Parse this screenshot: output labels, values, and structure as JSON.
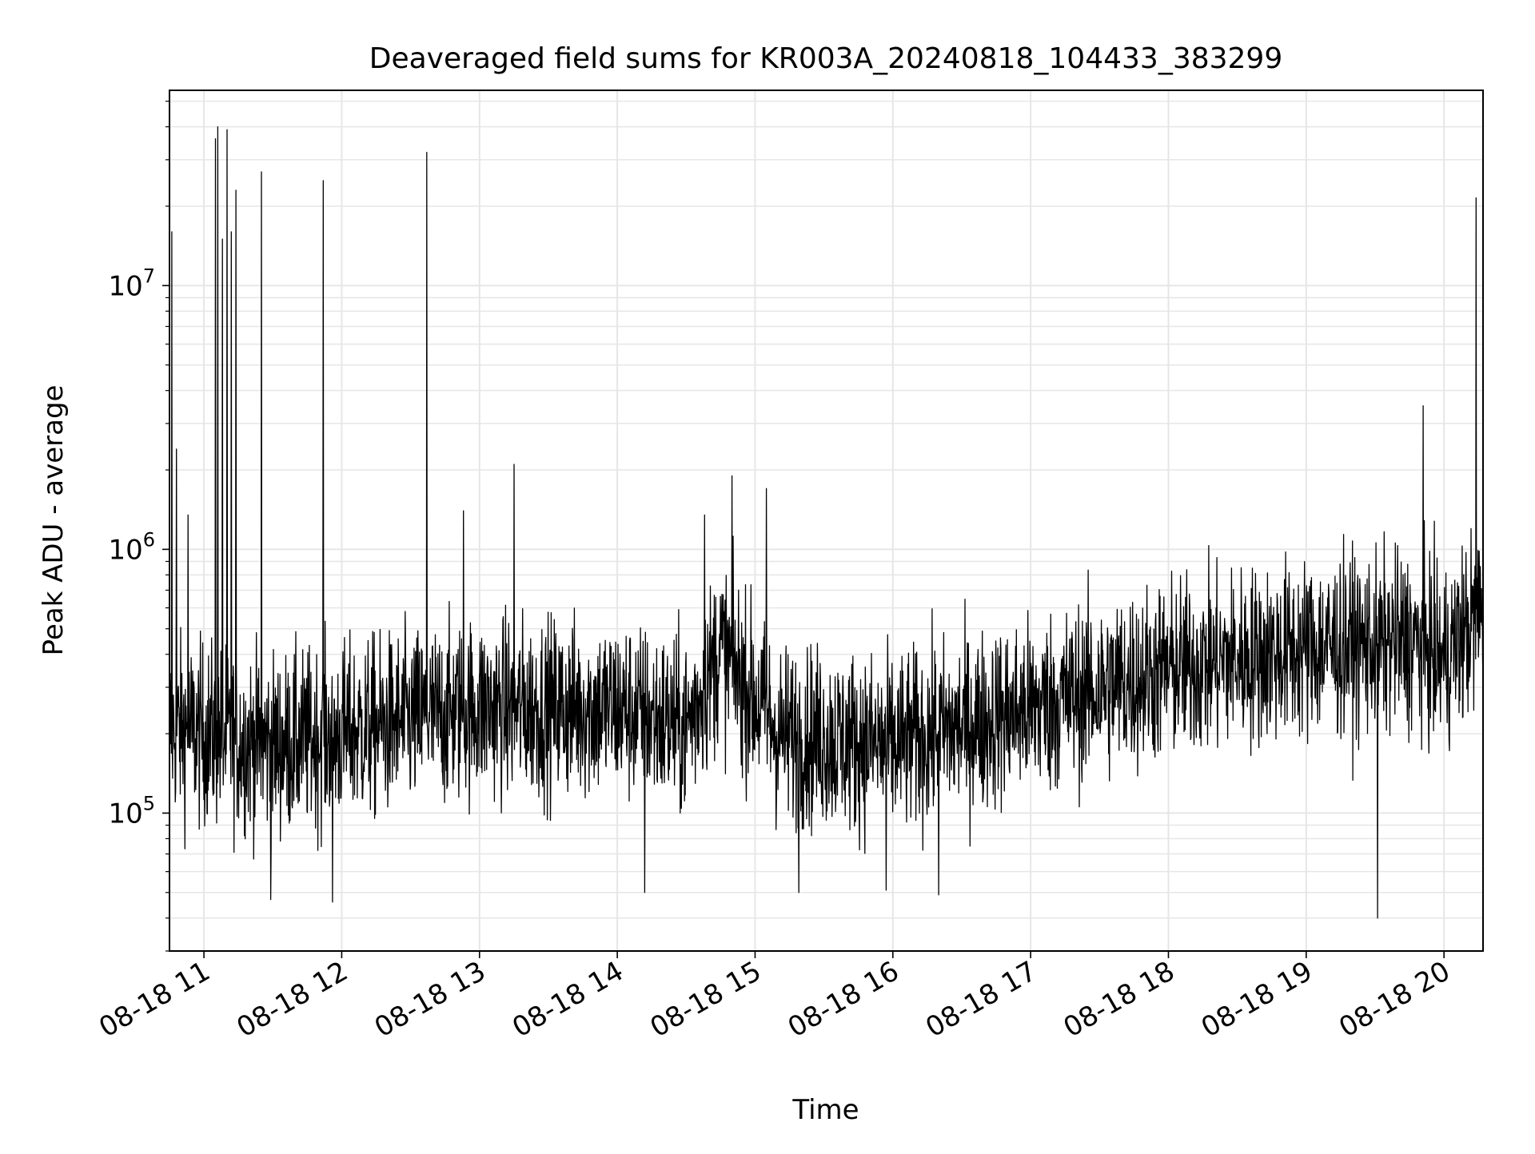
{
  "chart_data": {
    "type": "line",
    "title": "Deaveraged field sums for KR003A_20240818_104433_383299",
    "xlabel": "Time",
    "ylabel": "Peak ADU - average",
    "y_scale": "log",
    "ylim": [
      30000,
      55000000
    ],
    "xlim": [
      "2024-08-18 10:45",
      "2024-08-18 20:17"
    ],
    "grid": true,
    "line_color": "#000000",
    "grid_color": "#e6e6e6",
    "x_ticks": [
      {
        "value": "2024-08-18 11:00",
        "label": "08-18 11"
      },
      {
        "value": "2024-08-18 12:00",
        "label": "08-18 12"
      },
      {
        "value": "2024-08-18 13:00",
        "label": "08-18 13"
      },
      {
        "value": "2024-08-18 14:00",
        "label": "08-18 14"
      },
      {
        "value": "2024-08-18 15:00",
        "label": "08-18 15"
      },
      {
        "value": "2024-08-18 16:00",
        "label": "08-18 16"
      },
      {
        "value": "2024-08-18 17:00",
        "label": "08-18 17"
      },
      {
        "value": "2024-08-18 18:00",
        "label": "08-18 18"
      },
      {
        "value": "2024-08-18 19:00",
        "label": "08-18 19"
      },
      {
        "value": "2024-08-18 20:00",
        "label": "08-18 20"
      }
    ],
    "y_ticks": [
      {
        "value": 100000,
        "base": "10",
        "exp": "5"
      },
      {
        "value": 1000000,
        "base": "10",
        "exp": "6"
      },
      {
        "value": 10000000,
        "base": "10",
        "exp": "7"
      }
    ],
    "series": [
      {
        "baseline_trend": [
          {
            "x": "2024-08-18 10:45",
            "y": 210000
          },
          {
            "x": "2024-08-18 11:30",
            "y": 180000
          },
          {
            "x": "2024-08-18 12:00",
            "y": 200000
          },
          {
            "x": "2024-08-18 13:00",
            "y": 250000
          },
          {
            "x": "2024-08-18 14:00",
            "y": 250000
          },
          {
            "x": "2024-08-18 14:30",
            "y": 210000
          },
          {
            "x": "2024-08-18 14:45",
            "y": 420000
          },
          {
            "x": "2024-08-18 15:10",
            "y": 200000
          },
          {
            "x": "2024-08-18 16:00",
            "y": 180000
          },
          {
            "x": "2024-08-18 17:00",
            "y": 250000
          },
          {
            "x": "2024-08-18 18:00",
            "y": 350000
          },
          {
            "x": "2024-08-18 19:00",
            "y": 420000
          },
          {
            "x": "2024-08-18 19:45",
            "y": 450000
          },
          {
            "x": "2024-08-18 20:00",
            "y": 380000
          },
          {
            "x": "2024-08-18 20:17",
            "y": 600000
          }
        ],
        "spikes": [
          {
            "x": "2024-08-18 10:46",
            "y": 16000000
          },
          {
            "x": "2024-08-18 10:48",
            "y": 2400000
          },
          {
            "x": "2024-08-18 10:53",
            "y": 1350000
          },
          {
            "x": "2024-08-18 11:05",
            "y": 36000000
          },
          {
            "x": "2024-08-18 11:06",
            "y": 40000000
          },
          {
            "x": "2024-08-18 11:08",
            "y": 15000000
          },
          {
            "x": "2024-08-18 11:10",
            "y": 39000000
          },
          {
            "x": "2024-08-18 11:12",
            "y": 16000000
          },
          {
            "x": "2024-08-18 11:14",
            "y": 23000000
          },
          {
            "x": "2024-08-18 11:25",
            "y": 27000000
          },
          {
            "x": "2024-08-18 11:52",
            "y": 25000000
          },
          {
            "x": "2024-08-18 12:37",
            "y": 32000000
          },
          {
            "x": "2024-08-18 12:53",
            "y": 1400000
          },
          {
            "x": "2024-08-18 13:15",
            "y": 2100000
          },
          {
            "x": "2024-08-18 14:38",
            "y": 1350000
          },
          {
            "x": "2024-08-18 14:50",
            "y": 1900000
          },
          {
            "x": "2024-08-18 15:05",
            "y": 1700000
          },
          {
            "x": "2024-08-18 19:51",
            "y": 3500000
          },
          {
            "x": "2024-08-18 20:14",
            "y": 21500000
          }
        ],
        "dips": [
          {
            "x": "2024-08-18 11:29",
            "y": 47000
          },
          {
            "x": "2024-08-18 11:56",
            "y": 46000
          },
          {
            "x": "2024-08-18 14:12",
            "y": 50000
          },
          {
            "x": "2024-08-18 15:19",
            "y": 50000
          },
          {
            "x": "2024-08-18 15:57",
            "y": 51000
          },
          {
            "x": "2024-08-18 16:20",
            "y": 49000
          },
          {
            "x": "2024-08-18 19:31",
            "y": 40000
          }
        ]
      }
    ]
  }
}
